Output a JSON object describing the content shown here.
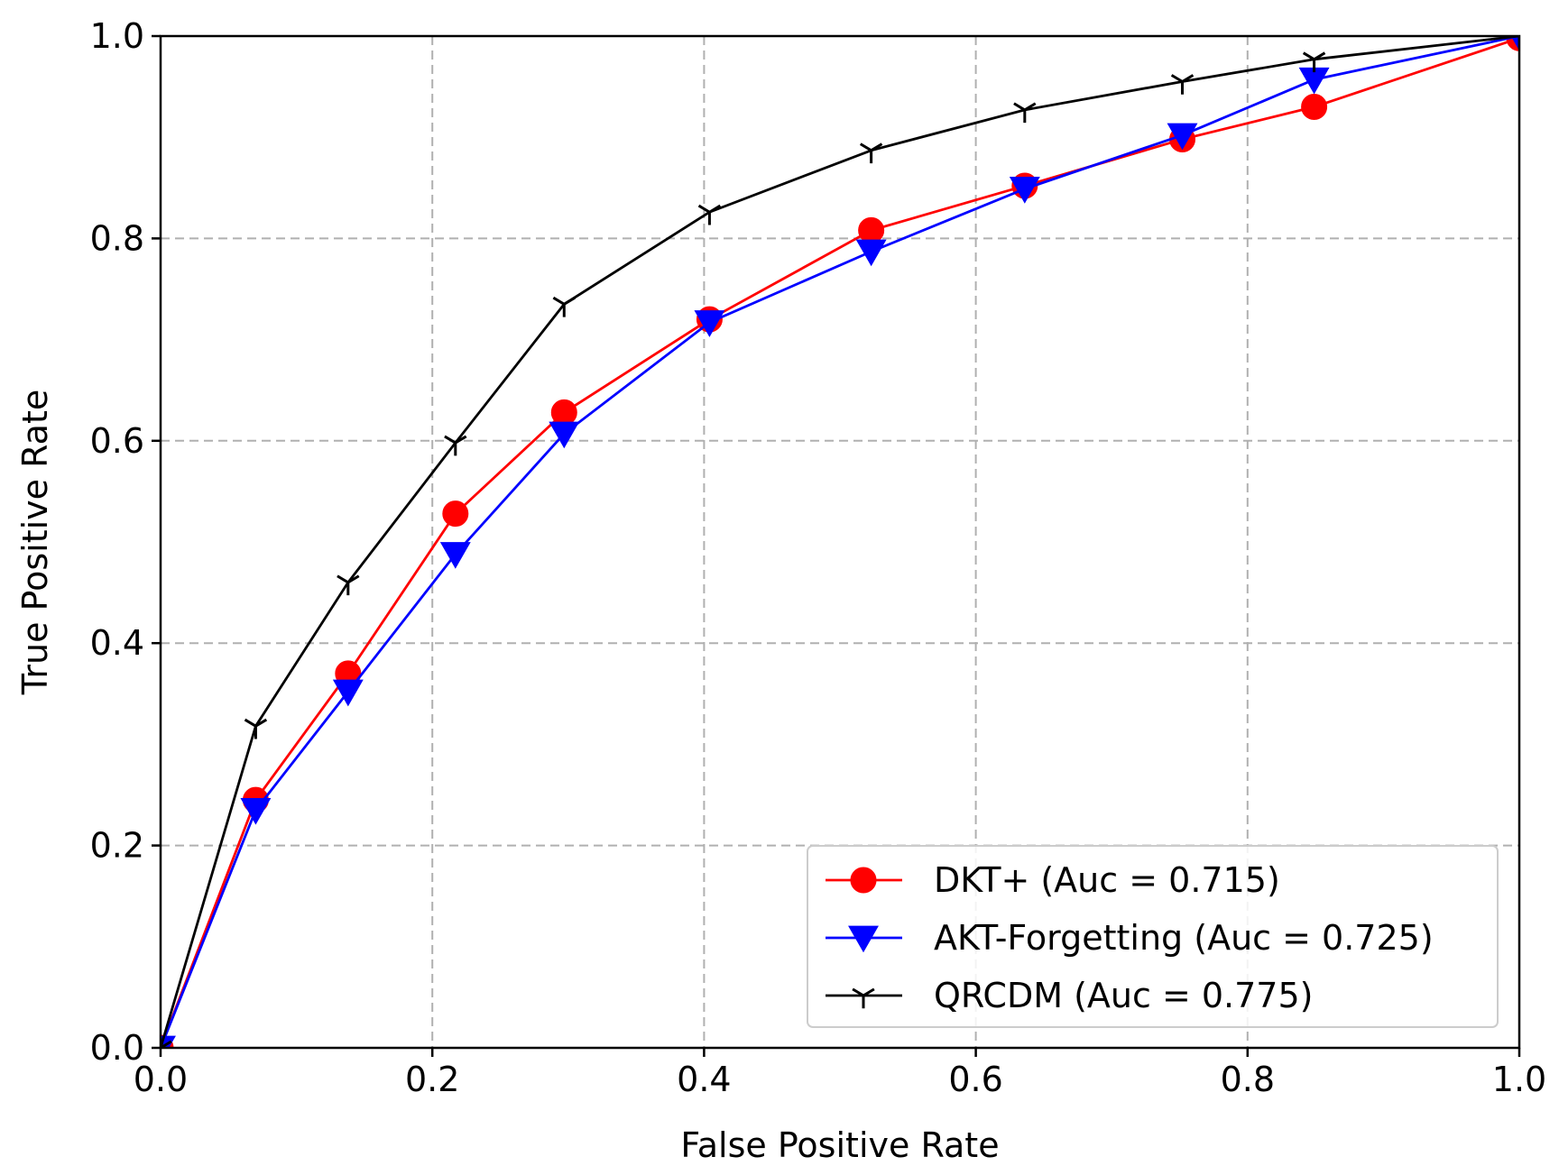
{
  "chart_data": {
    "type": "line",
    "title": "",
    "xlabel": "False Positive Rate",
    "ylabel": "True Positive Rate",
    "xlim": [
      0.0,
      1.0
    ],
    "ylim": [
      0.0,
      1.0
    ],
    "xticks": [
      "0.0",
      "0.2",
      "0.4",
      "0.6",
      "0.8",
      "1.0"
    ],
    "yticks": [
      "0.0",
      "0.2",
      "0.4",
      "0.6",
      "0.8",
      "1.0"
    ],
    "grid": true,
    "legend_position": "lower-right",
    "series": [
      {
        "name": "DKT+ (Auc = 0.715)",
        "color": "#ff0000",
        "marker": "circle",
        "x": [
          0.0,
          0.07,
          0.138,
          0.217,
          0.297,
          0.404,
          0.523,
          0.636,
          0.752,
          0.849,
          1.0
        ],
        "y": [
          0.0,
          0.245,
          0.37,
          0.528,
          0.628,
          0.72,
          0.808,
          0.852,
          0.898,
          0.93,
          0.998
        ]
      },
      {
        "name": "AKT-Forgetting (Auc = 0.725)",
        "color": "#0000ff",
        "marker": "triangle-down",
        "x": [
          0.0,
          0.07,
          0.138,
          0.217,
          0.297,
          0.404,
          0.523,
          0.636,
          0.752,
          0.849,
          1.0
        ],
        "y": [
          0.0,
          0.235,
          0.352,
          0.488,
          0.607,
          0.717,
          0.787,
          0.849,
          0.902,
          0.957,
          1.0
        ]
      },
      {
        "name": "QRCDM (Auc = 0.775)",
        "color": "#000000",
        "marker": "tri-down",
        "x": [
          0.0,
          0.07,
          0.138,
          0.217,
          0.297,
          0.404,
          0.523,
          0.636,
          0.752,
          0.849,
          1.0
        ],
        "y": [
          0.0,
          0.318,
          0.46,
          0.598,
          0.735,
          0.826,
          0.887,
          0.927,
          0.955,
          0.977,
          1.0
        ]
      }
    ]
  }
}
